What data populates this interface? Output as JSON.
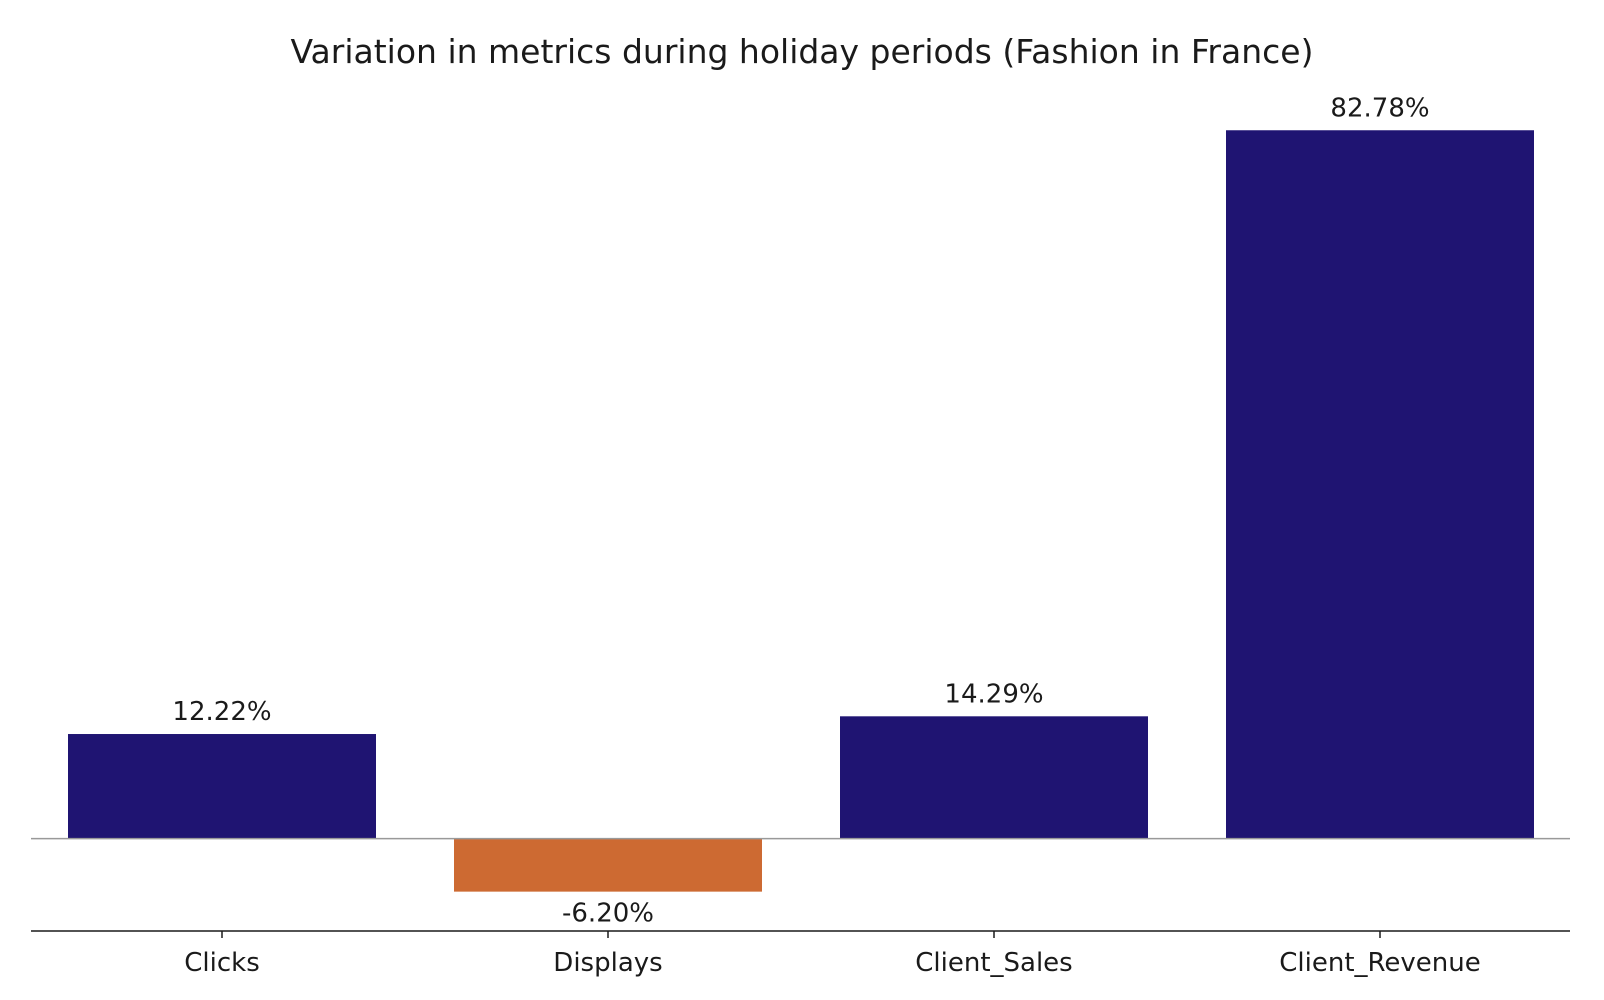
{
  "chart_data": {
    "type": "bar",
    "title": "Variation in metrics during holiday periods (Fashion in France)",
    "xlabel": "",
    "ylabel": "",
    "categories": [
      "Clicks",
      "Displays",
      "Client_Sales",
      "Client_Revenue"
    ],
    "values": [
      12.22,
      -6.2,
      14.29,
      82.78
    ],
    "data_labels": [
      "12.22%",
      "-6.20%",
      "14.29%",
      "82.78%"
    ],
    "ylim": [
      -10.8,
      86.9
    ],
    "grid": false,
    "legend": "none",
    "zero_line": true,
    "colors": {
      "positive": "#1f1472",
      "negative": "#cd6a32",
      "zero_line": "#999999",
      "axis": "#1a1a1a"
    }
  }
}
